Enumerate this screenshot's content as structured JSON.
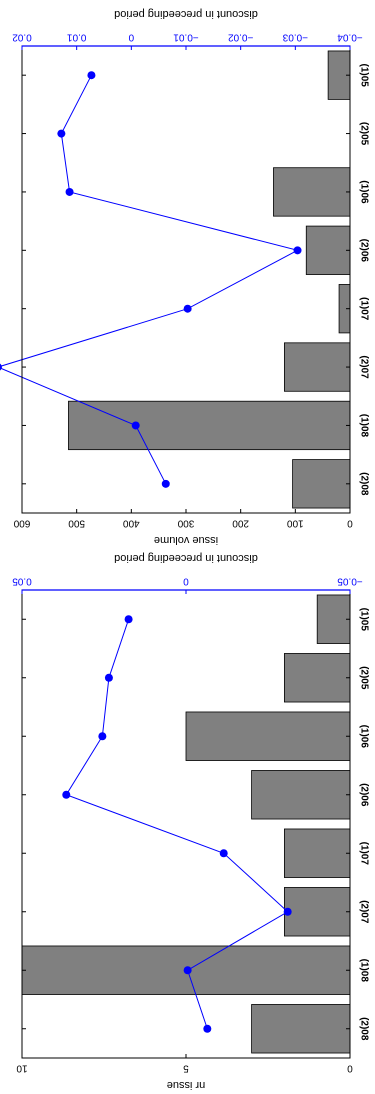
{
  "chart_data": [
    {
      "type": "bar",
      "categories": [
        "(1)05",
        "(2)05",
        "(1)06",
        "(2)06",
        "(1)07",
        "(2)07",
        "(1)08",
        "(2)08"
      ],
      "series": [
        {
          "values": [
            40,
            0,
            140,
            80,
            20,
            120,
            515,
            105
          ],
          "axis": "left"
        },
        {
          "type": "line",
          "values": [
            0.0073,
            0.0128,
            0.0113,
            -0.0304,
            -0.0103,
            0.0244,
            -0.0008,
            -0.0063
          ],
          "axis": "right"
        }
      ],
      "ylabel": "issue volume",
      "y2label": "discount in preceeding period",
      "ylim": [
        0,
        600
      ],
      "y2lim": [
        -0.04,
        0.02
      ],
      "yticks": [
        "0",
        "100",
        "200",
        "300",
        "400",
        "500",
        "600"
      ],
      "y2ticks": [
        "−0.04",
        "−0.03",
        "−0.02",
        "−0.01",
        "0",
        "0.01",
        "0.02"
      ],
      "orientation": "rotated-90"
    },
    {
      "type": "bar",
      "categories": [
        "(1)05",
        "(2)05",
        "(1)06",
        "(2)06",
        "(1)07",
        "(2)07",
        "(1)08",
        "(2)08"
      ],
      "series": [
        {
          "values": [
            1,
            2,
            5,
            3,
            2,
            2,
            10,
            3
          ],
          "axis": "left"
        },
        {
          "type": "line",
          "values": [
            0.0175,
            0.0235,
            0.0255,
            0.0365,
            -0.0115,
            -0.031,
            -0.0005,
            -0.0065
          ],
          "axis": "right"
        }
      ],
      "ylabel": "nr issue",
      "y2label": "discount in preceeding period",
      "ylim": [
        0,
        10
      ],
      "y2lim": [
        -0.05,
        0.05
      ],
      "yticks": [
        "0",
        "5",
        "10"
      ],
      "y2ticks": [
        "−0.05",
        "0",
        "0.05"
      ],
      "orientation": "rotated-90"
    }
  ]
}
